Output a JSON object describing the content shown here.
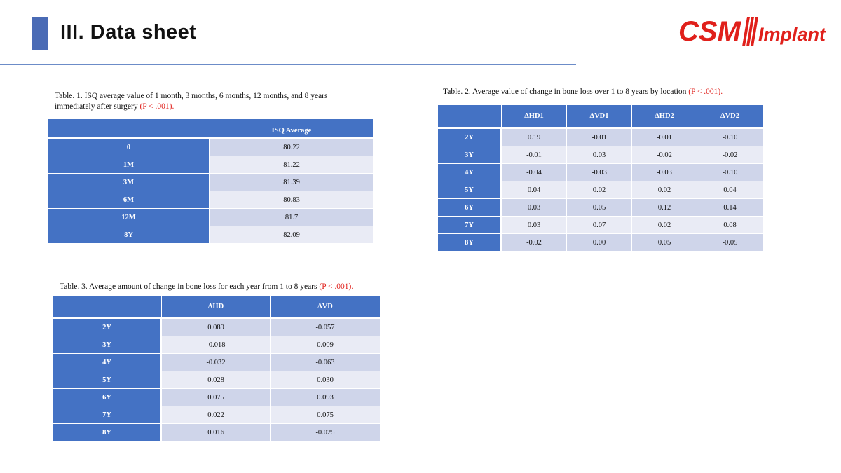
{
  "page": {
    "title": "III. Data sheet"
  },
  "logo": {
    "brand": "CSM",
    "product": "Implant",
    "color": "#e0201b"
  },
  "table1": {
    "caption_line1": "Table. 1. ISQ average value of 1 month, 3 months, 6 months, 12 months, and 8 years",
    "caption_line2": "immediately  after surgery ",
    "caption_p": "(P < .001).",
    "header_blank": "",
    "header": "ISQ Average",
    "rows": [
      {
        "label": "0",
        "value": "80.22"
      },
      {
        "label": "1M",
        "value": "81.22"
      },
      {
        "label": "3M",
        "value": "81.39"
      },
      {
        "label": "6M",
        "value": "80.83"
      },
      {
        "label": "12M",
        "value": "81.7"
      },
      {
        "label": "8Y",
        "value": "82.09"
      }
    ]
  },
  "table2": {
    "caption": "Table. 2. Average value of change in bone loss over 1 to 8 years by location ",
    "caption_p": "(P < .001).",
    "headers": [
      "ΔHD1",
      "ΔVD1",
      "ΔHD2",
      "ΔVD2"
    ],
    "rows": [
      {
        "label": "2Y",
        "values": [
          "0.19",
          "-0.01",
          "-0.01",
          "-0.10"
        ]
      },
      {
        "label": "3Y",
        "values": [
          "-0.01",
          "0.03",
          "-0.02",
          "-0.02"
        ]
      },
      {
        "label": "4Y",
        "values": [
          "-0.04",
          "-0.03",
          "-0.03",
          "-0.10"
        ]
      },
      {
        "label": "5Y",
        "values": [
          "0.04",
          "0.02",
          "0.02",
          "0.04"
        ]
      },
      {
        "label": "6Y",
        "values": [
          "0.03",
          "0.05",
          "0.12",
          "0.14"
        ]
      },
      {
        "label": "7Y",
        "values": [
          "0.03",
          "0.07",
          "0.02",
          "0.08"
        ]
      },
      {
        "label": "8Y",
        "values": [
          "-0.02",
          "0.00",
          "0.05",
          "-0.05"
        ]
      }
    ]
  },
  "table3": {
    "caption": "Table. 3. Average amount of change in bone loss for each year from 1 to 8 years ",
    "caption_p": "(P < .001).",
    "headers": [
      "ΔHD",
      "ΔVD"
    ],
    "rows": [
      {
        "label": "2Y",
        "values": [
          "0.089",
          "-0.057"
        ]
      },
      {
        "label": "3Y",
        "values": [
          "-0.018",
          "0.009"
        ]
      },
      {
        "label": "4Y",
        "values": [
          "-0.032",
          "-0.063"
        ]
      },
      {
        "label": "5Y",
        "values": [
          "0.028",
          "0.030"
        ]
      },
      {
        "label": "6Y",
        "values": [
          "0.075",
          "0.093"
        ]
      },
      {
        "label": "7Y",
        "values": [
          "0.022",
          "0.075"
        ]
      },
      {
        "label": "8Y",
        "values": [
          "0.016",
          "-0.025"
        ]
      }
    ]
  }
}
